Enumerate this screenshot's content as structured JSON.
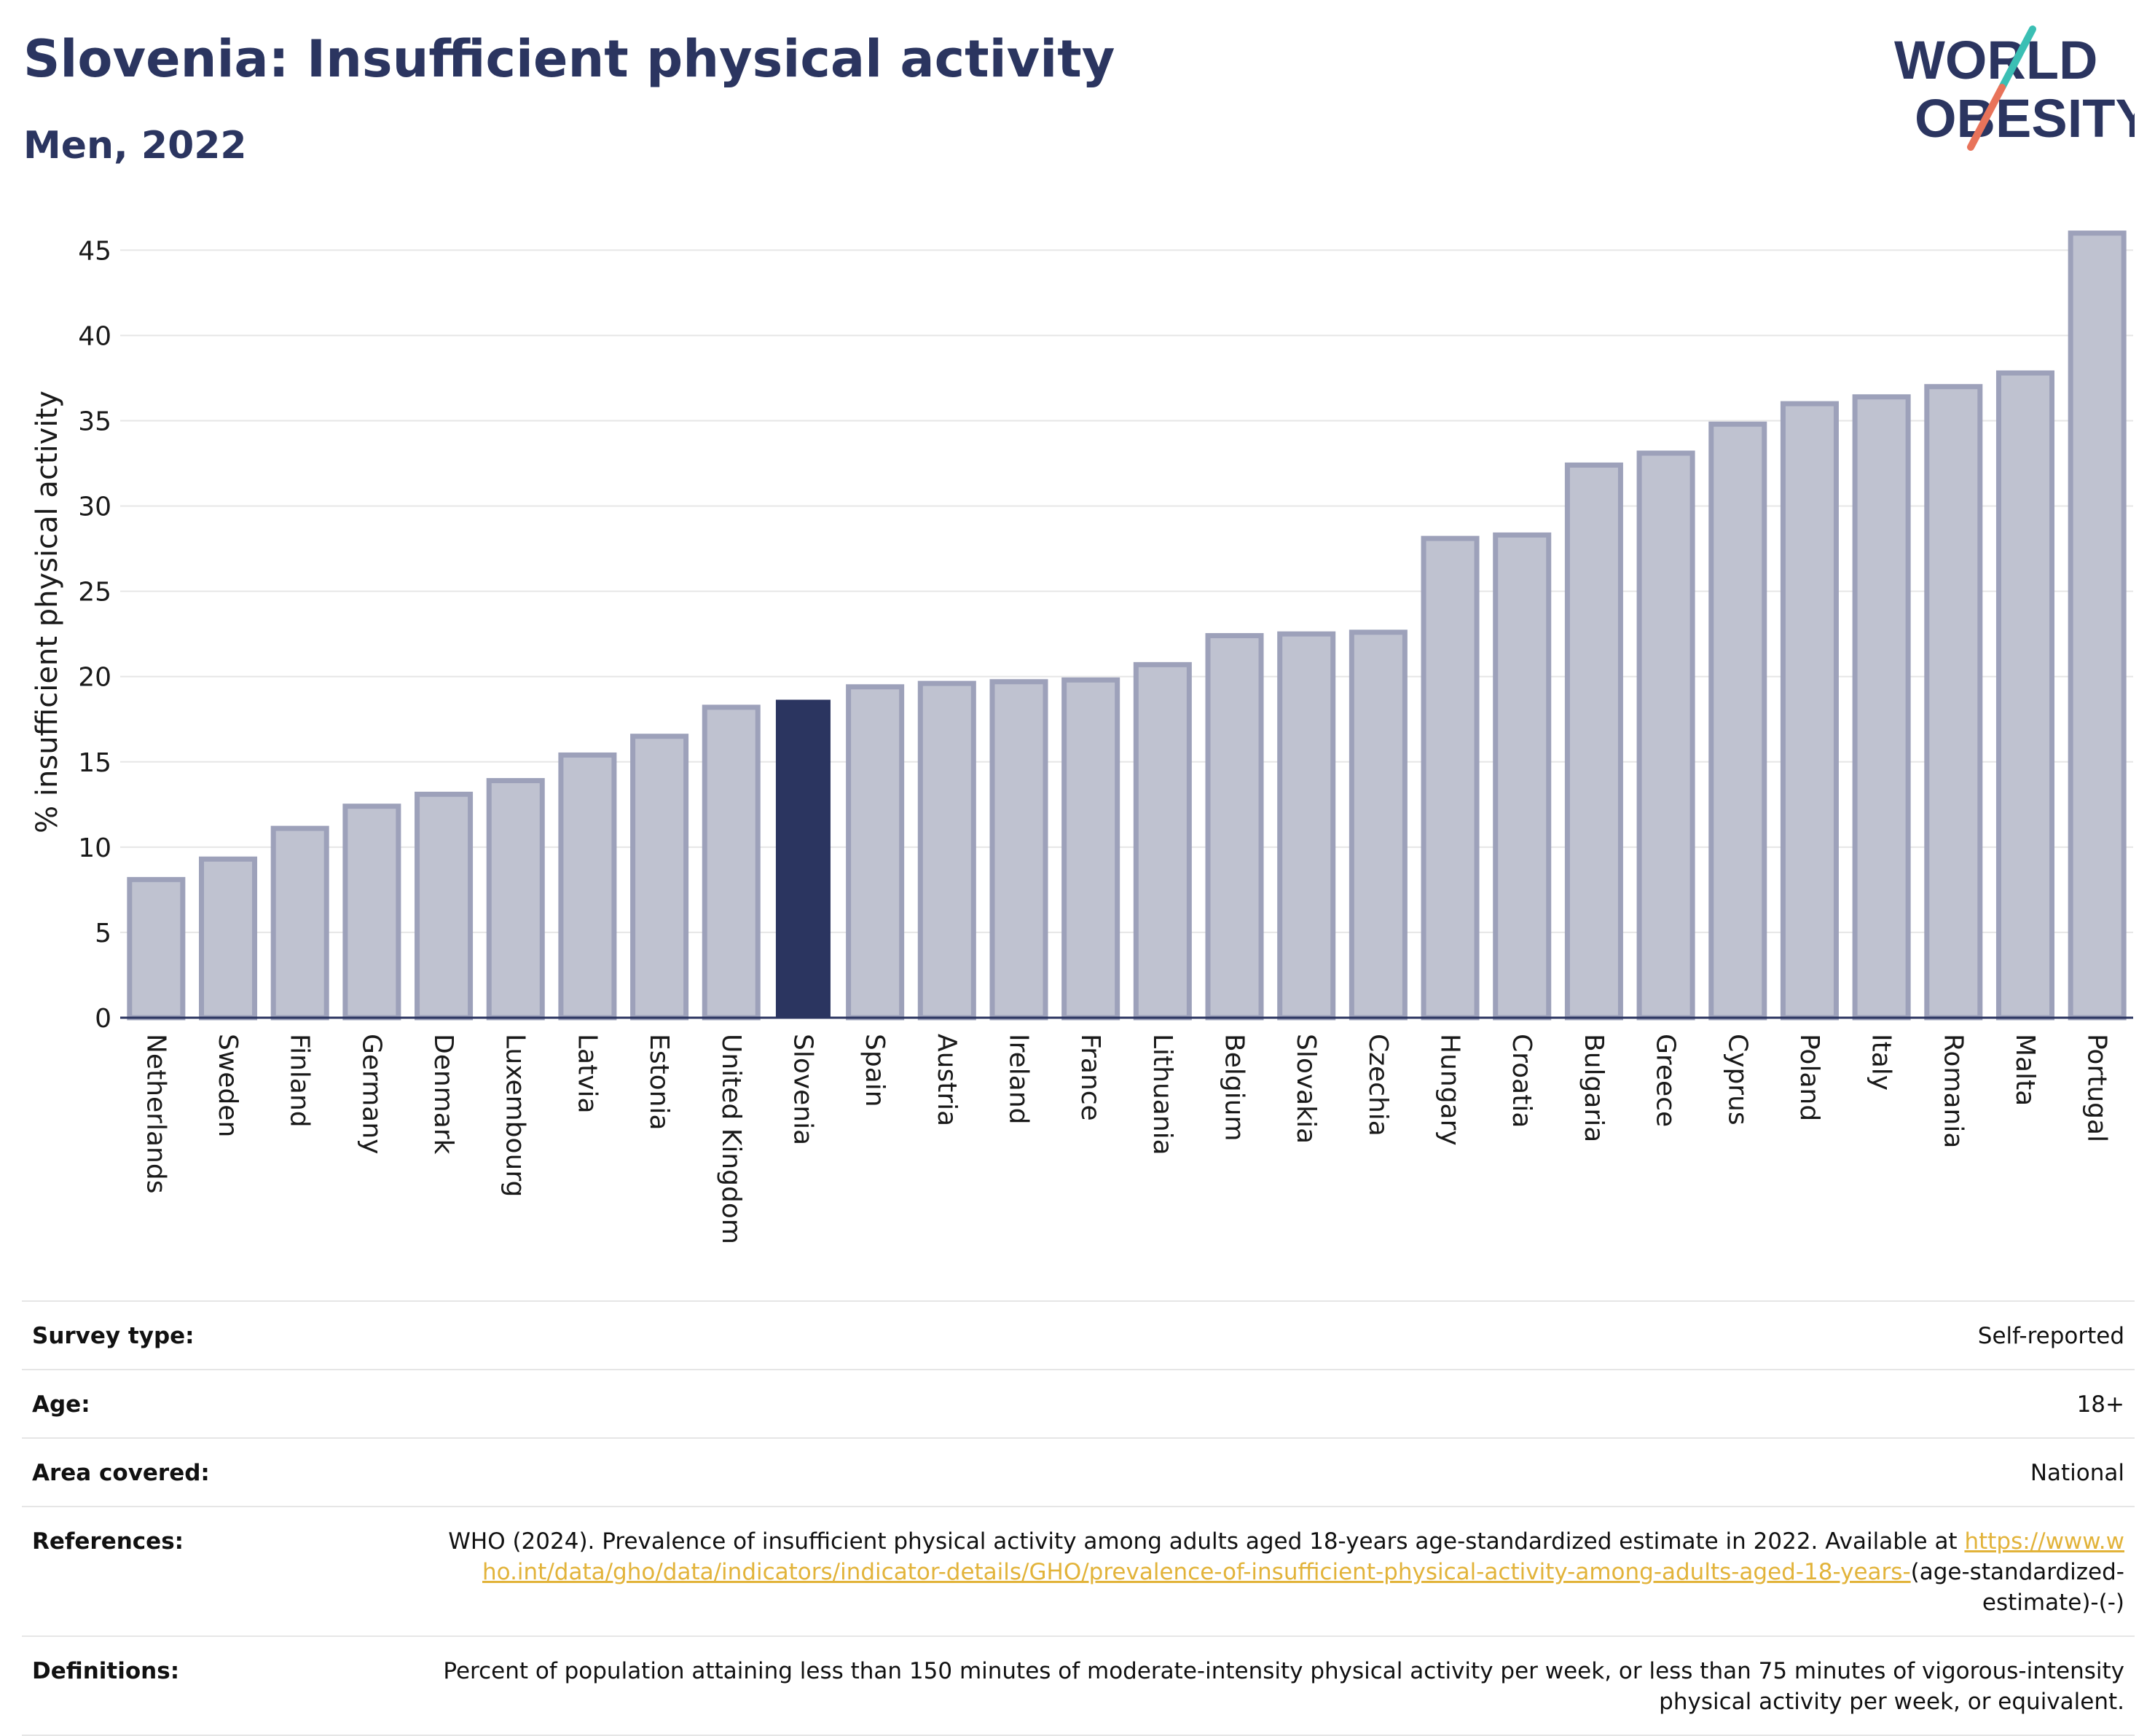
{
  "header": {
    "title": "Slovenia: Insufficient physical activity",
    "subtitle": "Men, 2022"
  },
  "logo": {
    "line1": "WORLD",
    "line2": "OBESITY",
    "colors": {
      "text": "#2b3560",
      "slash_top": "#3bbfb4",
      "slash_bottom": "#e8735a"
    }
  },
  "colors": {
    "bar": "#bfc2d0",
    "bar_stroke": "#9da1ba",
    "highlight": "#2b3560",
    "axis": "#2b3560",
    "grid": "#e6e6e6"
  },
  "chart_data": {
    "type": "bar",
    "title": "Slovenia: Insufficient physical activity",
    "subtitle": "Men, 2022",
    "ylabel": "% insufficient physical activity",
    "xlabel": "",
    "ylim": [
      0,
      46
    ],
    "yticks": [
      0,
      5,
      10,
      15,
      20,
      25,
      30,
      35,
      40,
      45
    ],
    "grid": true,
    "highlight_category": "Slovenia",
    "categories": [
      "Netherlands",
      "Sweden",
      "Finland",
      "Germany",
      "Denmark",
      "Luxembourg",
      "Latvia",
      "Estonia",
      "United Kingdom",
      "Slovenia",
      "Spain",
      "Austria",
      "Ireland",
      "France",
      "Lithuania",
      "Belgium",
      "Slovakia",
      "Czechia",
      "Hungary",
      "Croatia",
      "Bulgaria",
      "Greece",
      "Cyprus",
      "Poland",
      "Italy",
      "Romania",
      "Malta",
      "Portugal"
    ],
    "values": [
      8.1,
      9.3,
      11.1,
      12.4,
      13.1,
      13.9,
      15.4,
      16.5,
      18.2,
      18.6,
      19.4,
      19.6,
      19.7,
      19.8,
      20.7,
      22.4,
      22.5,
      22.6,
      28.1,
      28.3,
      32.4,
      33.1,
      34.8,
      36.0,
      36.4,
      37.0,
      37.8,
      46.0
    ]
  },
  "meta": {
    "survey_type_label": "Survey type:",
    "survey_type_value": "Self-reported",
    "age_label": "Age:",
    "age_value": "18+",
    "area_label": "Area covered:",
    "area_value": "National",
    "references_label": "References:",
    "references_text": "WHO (2024). Prevalence of insufficient physical activity among adults aged 18-years age-standardized estimate in 2022. Available at",
    "references_link": "https://www.who.int/data/gho/data/indicators/indicator-details/GHO/prevalence-of-insufficient-physical-activity-among-adults-aged-18-years-",
    "references_suffix": "(age-standardized-estimate)-(-)",
    "definitions_label": "Definitions:",
    "definitions_value": "Percent of population attaining less than 150 minutes of moderate-intensity physical activity per week, or less than 75 minutes of vigorous-intensity physical activity per week, or equivalent."
  }
}
